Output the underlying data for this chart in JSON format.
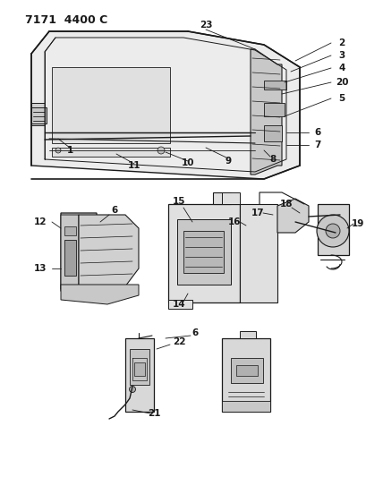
{
  "header": "7171  4400 C",
  "bg": "#f5f5f0",
  "fg": "#1a1a1a",
  "figsize": [
    4.28,
    5.33
  ],
  "dpi": 100
}
